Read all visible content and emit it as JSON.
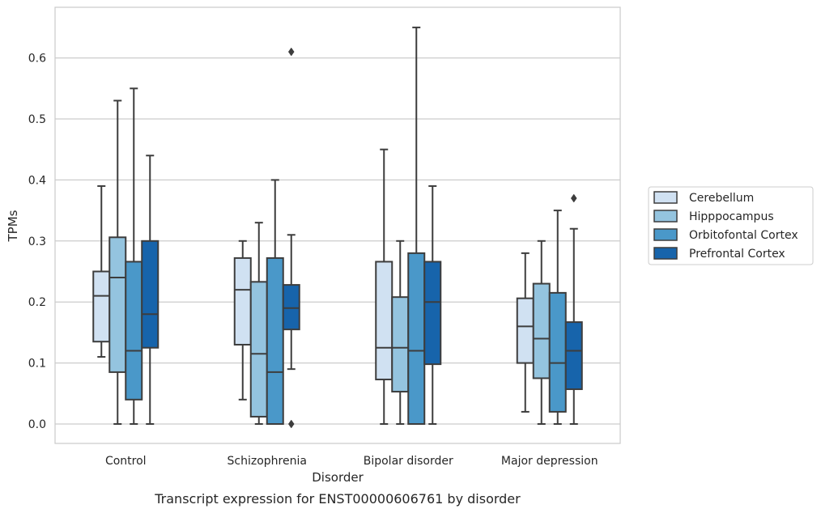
{
  "chart_data": {
    "type": "box",
    "title": "",
    "caption": "Transcript expression for ENST00000606761 by disorder",
    "xlabel": "Disorder",
    "ylabel": "TPMs",
    "ylim": [
      -0.032,
      0.685
    ],
    "yticks": [
      0.0,
      0.1,
      0.2,
      0.3,
      0.4,
      0.5,
      0.6
    ],
    "ytick_labels": [
      "0.0",
      "0.1",
      "0.2",
      "0.3",
      "0.4",
      "0.5",
      "0.6"
    ],
    "grid": "horizontal",
    "legend_position": "right",
    "categories": [
      "Control",
      "Schizophrenia",
      "Bipolar disorder",
      "Major depression"
    ],
    "series": [
      {
        "name": "Cerebellum",
        "color": "#d0e1f2",
        "boxes": [
          {
            "whislo": 0.11,
            "q1": 0.135,
            "med": 0.21,
            "q3": 0.25,
            "whishi": 0.39,
            "fliers": []
          },
          {
            "whislo": 0.04,
            "q1": 0.13,
            "med": 0.22,
            "q3": 0.272,
            "whishi": 0.3,
            "fliers": []
          },
          {
            "whislo": 0.0,
            "q1": 0.073,
            "med": 0.125,
            "q3": 0.266,
            "whishi": 0.45,
            "fliers": []
          },
          {
            "whislo": 0.02,
            "q1": 0.1,
            "med": 0.16,
            "q3": 0.206,
            "whishi": 0.28,
            "fliers": []
          }
        ]
      },
      {
        "name": "Hipppocampus",
        "color": "#94c4df",
        "boxes": [
          {
            "whislo": 0.0,
            "q1": 0.085,
            "med": 0.24,
            "q3": 0.306,
            "whishi": 0.53,
            "fliers": []
          },
          {
            "whislo": 0.0,
            "q1": 0.012,
            "med": 0.115,
            "q3": 0.233,
            "whishi": 0.33,
            "fliers": []
          },
          {
            "whislo": 0.0,
            "q1": 0.053,
            "med": 0.125,
            "q3": 0.208,
            "whishi": 0.3,
            "fliers": []
          },
          {
            "whislo": 0.0,
            "q1": 0.075,
            "med": 0.14,
            "q3": 0.23,
            "whishi": 0.3,
            "fliers": []
          }
        ]
      },
      {
        "name": "Orbitofontal Cortex",
        "color": "#4a98c9",
        "boxes": [
          {
            "whislo": 0.0,
            "q1": 0.04,
            "med": 0.12,
            "q3": 0.266,
            "whishi": 0.55,
            "fliers": []
          },
          {
            "whislo": 0.0,
            "q1": 0.0,
            "med": 0.085,
            "q3": 0.272,
            "whishi": 0.4,
            "fliers": []
          },
          {
            "whislo": 0.0,
            "q1": 0.0,
            "med": 0.12,
            "q3": 0.28,
            "whishi": 0.65,
            "fliers": []
          },
          {
            "whislo": 0.0,
            "q1": 0.02,
            "med": 0.1,
            "q3": 0.215,
            "whishi": 0.35,
            "fliers": []
          }
        ]
      },
      {
        "name": "Prefrontal Cortex",
        "color": "#1764ab",
        "boxes": [
          {
            "whislo": 0.0,
            "q1": 0.125,
            "med": 0.18,
            "q3": 0.3,
            "whishi": 0.44,
            "fliers": []
          },
          {
            "whislo": 0.09,
            "q1": 0.155,
            "med": 0.19,
            "q3": 0.228,
            "whishi": 0.31,
            "fliers": [
              0.61,
              0.0
            ]
          },
          {
            "whislo": 0.0,
            "q1": 0.098,
            "med": 0.2,
            "q3": 0.266,
            "whishi": 0.39,
            "fliers": []
          },
          {
            "whislo": 0.0,
            "q1": 0.057,
            "med": 0.12,
            "q3": 0.167,
            "whishi": 0.32,
            "fliers": [
              0.37
            ]
          }
        ]
      }
    ]
  }
}
